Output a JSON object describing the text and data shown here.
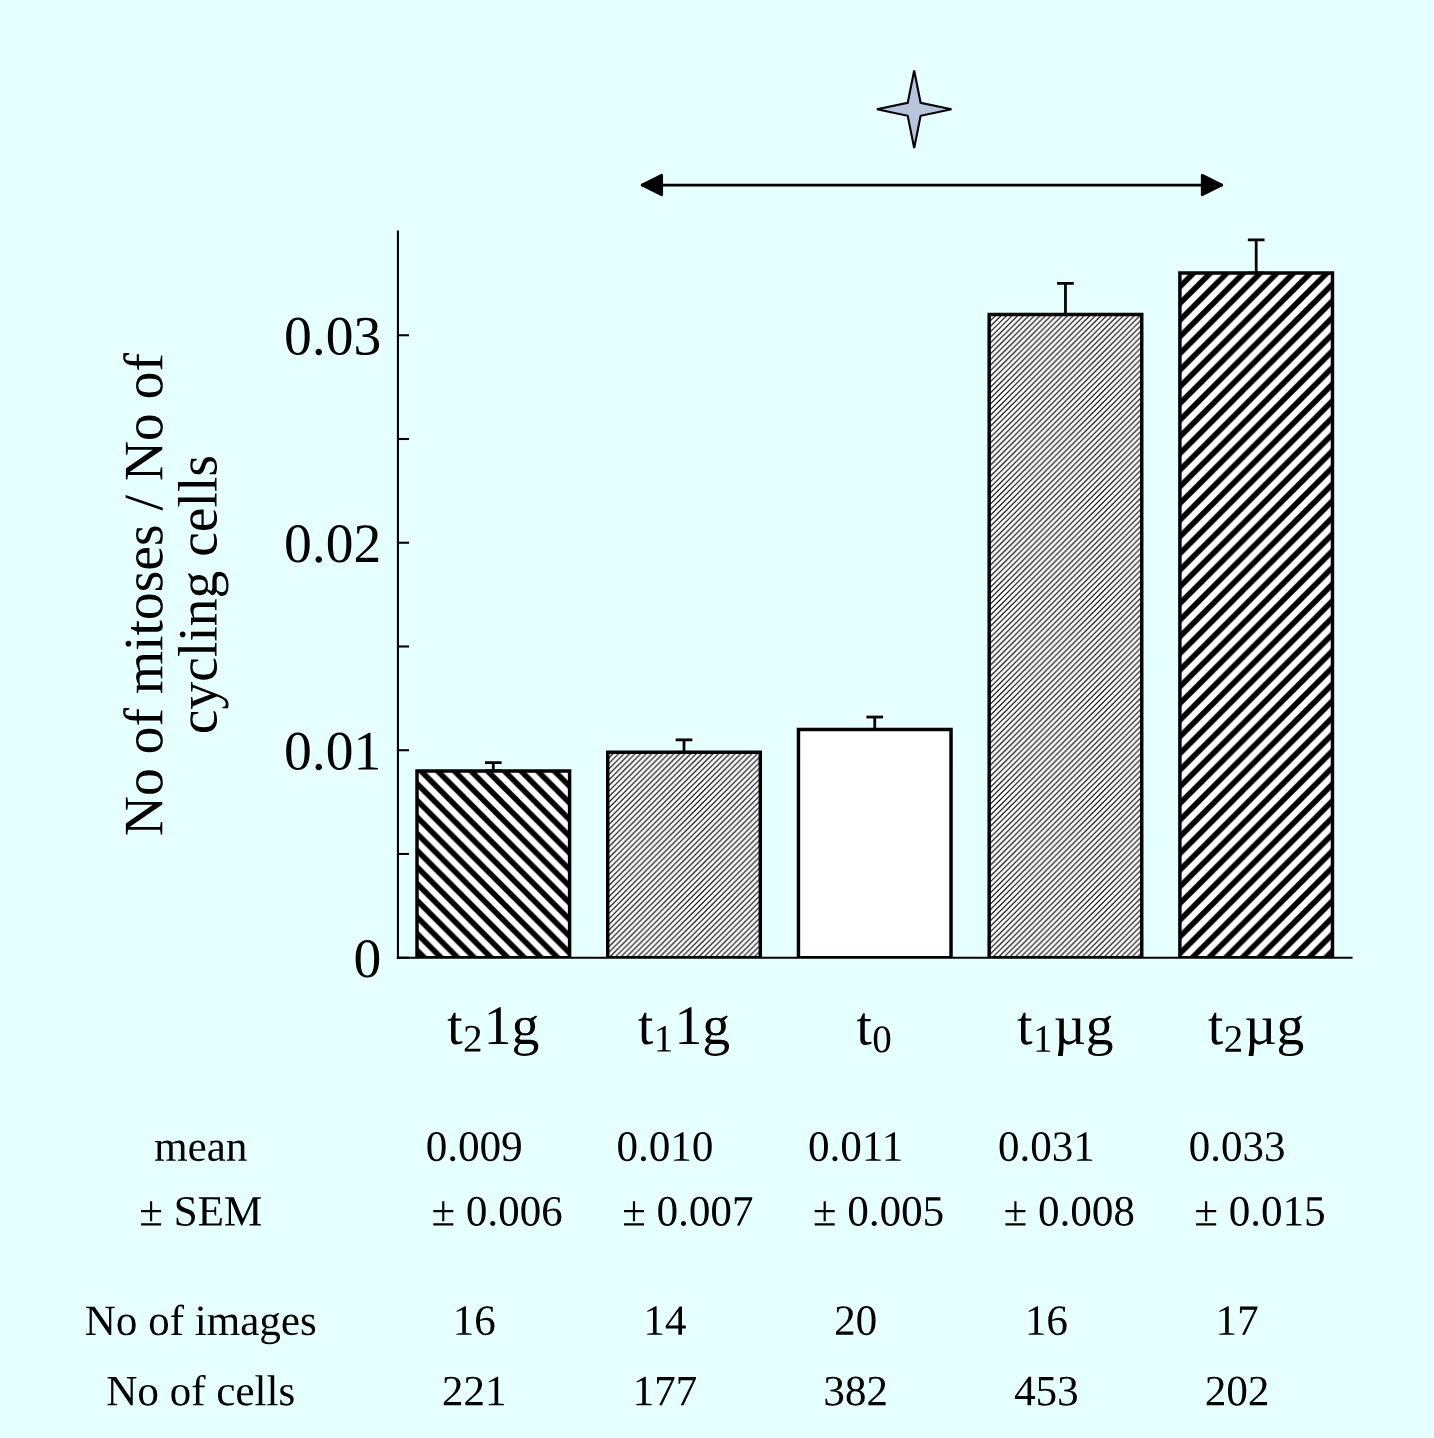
{
  "chart_data": {
    "type": "bar",
    "ylabel": "No of mitoses / No of\ncycling cells",
    "categories": [
      "t$_{2}$1g",
      "t$_{1}$1g",
      "t$_{0}$",
      "t$_{1}$µg",
      "t$_{2}$µg"
    ],
    "values": [
      0.009,
      0.0099,
      0.011,
      0.031,
      0.033
    ],
    "value_labels": [
      "0.009",
      "0.010",
      "0.011",
      "0.031",
      "0.033"
    ],
    "colors": [
      "#000000",
      "#000000",
      "#ffffff",
      "#000000",
      "#000000"
    ],
    "errors": [
      [
        0.009,
        0.0094
      ],
      [
        0.0099,
        0.0105
      ],
      [
        0.011,
        0.0116
      ],
      [
        0.031,
        0.0325
      ],
      [
        0.033,
        0.0346
      ]
    ],
    "ylim": [
      0,
      0.035
    ],
    "yticks": [
      0,
      0.01,
      0.02,
      0.03
    ],
    "grid": false,
    "legend": false,
    "annotations": [
      "mean",
      "± SEM",
      "± 0.006",
      "± 0.007",
      "± 0.005",
      "± 0.008",
      "± 0.015",
      "No of images",
      "16",
      "14",
      "20",
      "16",
      "17",
      "No of cells",
      "221",
      "177",
      "382",
      "453",
      "202"
    ]
  }
}
